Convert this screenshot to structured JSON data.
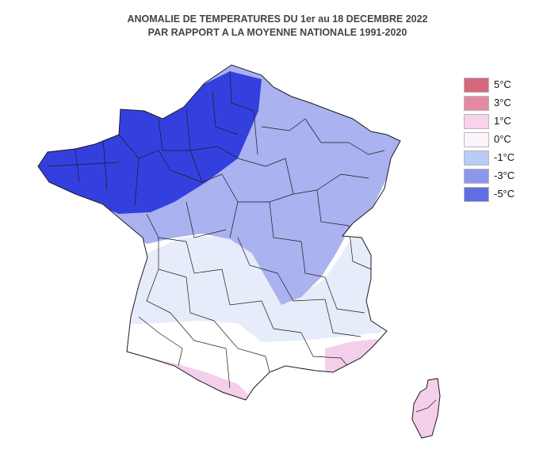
{
  "title": {
    "line1": "ANOMALIE DE TEMPERATURES DU 1er au 18 DECEMBRE 2022",
    "line2": "PAR RAPPORT A LA MOYENNE NATIONALE 1991-2020"
  },
  "legend": [
    {
      "label": "5°C",
      "color": "#d4687c"
    },
    {
      "label": "3°C",
      "color": "#e58aa3"
    },
    {
      "label": "1°C",
      "color": "#f8d4ec"
    },
    {
      "label": "0°C",
      "color": "#fdf4fb"
    },
    {
      "label": "-1°C",
      "color": "#b9cbf6"
    },
    {
      "label": "-3°C",
      "color": "#8c96ea"
    },
    {
      "label": "-5°C",
      "color": "#5e6fe2"
    }
  ],
  "map_colors": {
    "outline": "#1a1a1a",
    "strong_cold": "#3440de",
    "cold": "#aab2ef",
    "slightly_cold": "#e6ecfa",
    "neutral": "#ffffff",
    "warm": "#f4cfec"
  }
}
